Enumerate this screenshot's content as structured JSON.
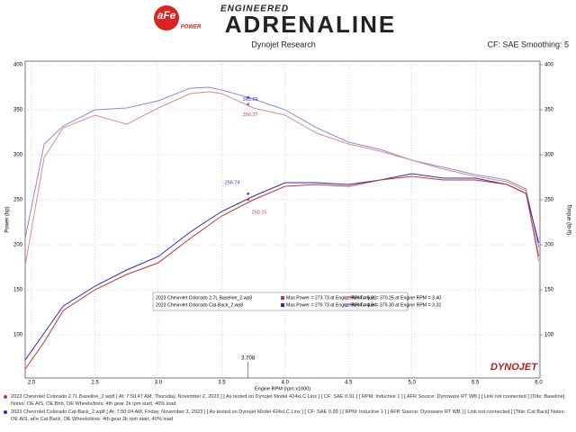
{
  "header": {
    "brand": "aFe",
    "brand_sub": "POWER",
    "line1": "ENGINEERED",
    "line2": "ADRENALINE"
  },
  "chart_data": {
    "type": "line",
    "subtitle": "Dynojet Research",
    "settings_label": "CF: SAE Smoothing: 5",
    "x_label": "Engine RPM (rpm x1000)",
    "y_label": "Power (hp)",
    "y2_label": "Torque (lb-ft)",
    "watermark": "DYNOJET",
    "x": [
      1.95,
      2.1,
      2.25,
      2.5,
      2.75,
      3.0,
      3.25,
      3.4,
      3.5,
      3.75,
      4.0,
      4.25,
      4.5,
      4.75,
      5.0,
      5.25,
      5.5,
      5.75,
      5.9,
      6.0
    ],
    "series": [
      {
        "color": "#8a8ae6",
        "axis": "y2",
        "values": [
          207,
          312,
          332,
          350,
          352,
          360,
          374,
          375,
          372,
          362,
          350,
          330,
          314,
          306,
          294,
          286,
          278,
          272,
          262,
          197
        ]
      },
      {
        "color": "#e08a8a",
        "axis": "y2",
        "values": [
          177,
          297,
          330,
          344,
          334,
          352,
          368,
          370,
          368,
          352,
          344,
          324,
          312,
          304,
          294,
          284,
          276,
          270,
          260,
          182
        ]
      },
      {
        "color": "#2a2ab8",
        "axis": "y",
        "values": [
          72,
          102,
          132,
          154,
          172,
          187,
          214,
          228,
          237,
          254,
          269,
          269,
          267,
          272,
          279,
          274,
          274,
          267,
          257,
          202
        ]
      },
      {
        "color": "#cc3333",
        "axis": "y",
        "values": [
          62,
          92,
          127,
          150,
          167,
          180,
          207,
          222,
          232,
          250,
          265,
          267,
          265,
          272,
          276,
          272,
          272,
          267,
          257,
          187
        ]
      }
    ],
    "xlim": [
      1.95,
      6.01
    ],
    "xticks": [
      {
        "value": 2,
        "label": "2.0"
      },
      2.5,
      {
        "value": 3,
        "label": "3.0"
      },
      3.5,
      {
        "value": 4,
        "label": "4.0"
      },
      4.5,
      {
        "value": 5,
        "label": "5.0"
      },
      5.5,
      {
        "value": 6,
        "label": "6.0"
      }
    ],
    "ylim": [
      52,
      404
    ],
    "yticks": [
      100,
      150,
      200,
      250,
      300,
      350,
      400
    ],
    "y2lim": [
      52,
      404
    ],
    "y2ticks": [
      100,
      150,
      200,
      250,
      300,
      350,
      400
    ],
    "grid": true,
    "cursor": 3.708,
    "annotations": [
      {
        "value": 363.69,
        "axis": "y2",
        "color": "#3333cc"
      },
      {
        "value": 356.37,
        "axis": "y2",
        "color": "#cc4444"
      },
      {
        "value": 256.74,
        "axis": "y",
        "color": "#3333cc"
      },
      {
        "value": 250.15,
        "axis": "y",
        "color": "#cc4444"
      }
    ],
    "legend": [
      {
        "color": "#cc3333",
        "torque_color": "#e08a8a",
        "file": "2023 Chevrolet Colorado 2.7L Baseline_2.wp8",
        "power": "Max Power = 273.73 at Engine RPM = 5.02",
        "torque": "Max Torque = 370.25 at Engine RPM = 3.40"
      },
      {
        "color": "#2a2ab8",
        "torque_color": "#8a8ae6",
        "file": "2023 Chevrolet Colorado Cat-Back_2.wp8",
        "power": "Max Power = 279.73 at Engine RPM = 4.94",
        "torque": "Max Torque = 375.30 at Engine RPM = 3.32"
      }
    ]
  },
  "notes": [
    {
      "color": "#cc3333",
      "text": "2023 Chevrolet Colorado 2.7L Baseline_2.wp8 [ At: 7:50:47 AM, Thursday, November 2, 2023 ] [ As tested on Dynojet Model 424xLC Linx ] [ CF: SAE 0.91 ] [ RPM: Inductive 1 ] [ AFR Source: Dynoware RT WB ] [ Link not connected ] [Title: Baseline] Notes: OE AIS, OE Bhh, OE Wheels/tires: 4th gear 2k rpm start, 40% load"
    },
    {
      "color": "#2a2ab8",
      "text": "2023 Chevrolet Colorado Cat-Back_2.wp8 [ At: 7:50:04 AM, Friday, November 3, 2023 ] [ As tested on Dynojet Model 424xLC Linx ] [ CF: SAE 0.99 ] [ RPM: Inductive 1 ] [ AFR Source: Dynoware RT WB ] [ Link not connected ] [Title: Cat Back] Notes: OE AIS, aFe Cat Back, OE Wheels/tires: 4th gear 2k rpm start, 40% load"
    }
  ]
}
